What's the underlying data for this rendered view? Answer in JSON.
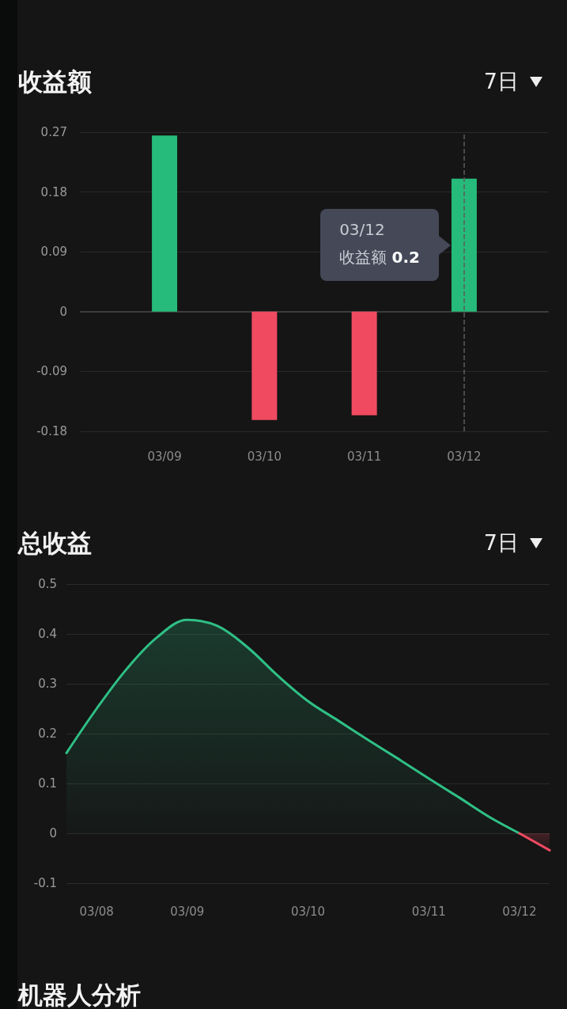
{
  "chart_data": [
    {
      "type": "bar",
      "title": "收益额",
      "categories": [
        "03/09",
        "03/10",
        "03/11",
        "03/12"
      ],
      "values": [
        0.265,
        -0.163,
        -0.156,
        0.2
      ],
      "colors": [
        "#26bb7a",
        "#f04a61",
        "#f04a61",
        "#26bb7a"
      ],
      "ylim": [
        -0.18,
        0.27
      ],
      "yticks": [
        -0.18,
        -0.09,
        0,
        0.09,
        0.18,
        0.27
      ],
      "grid": "y",
      "ref_lines": [
        {
          "axis": "x",
          "value": "03/12",
          "line_style": "dashed",
          "color": "#5c5c5c"
        }
      ],
      "annotations": [
        "7日",
        {
          "text": "03/12\n收益额 0.2",
          "x": "03/12"
        }
      ]
    },
    {
      "type": "area",
      "title": "总收益",
      "categories": [
        null,
        "03/08",
        null,
        null,
        "03/09",
        null,
        null,
        null,
        "03/10",
        null,
        null,
        null,
        "03/11",
        null,
        null,
        "03/12",
        null
      ],
      "series": [
        {
          "color": "#2fc086",
          "values": [
            0.161,
            0.25,
            0.33,
            0.393,
            0.428,
            0.416,
            0.373,
            0.316,
            0.265,
            0.226,
            0.187,
            0.149,
            0.11,
            0.072,
            0.033,
            0,
            null
          ]
        },
        {
          "color": "#ef4a62",
          "values": [
            null,
            null,
            null,
            null,
            null,
            null,
            null,
            null,
            null,
            null,
            null,
            null,
            null,
            null,
            null,
            0,
            -0.034
          ]
        }
      ],
      "ylim": [
        -0.1,
        0.5
      ],
      "yticks": [
        -0.1,
        0,
        0.1,
        0.2,
        0.3,
        0.4,
        0.5
      ],
      "grid": "y",
      "annotations": [
        "7日"
      ]
    },
    {
      "type": "other",
      "title": "机器人分析"
    }
  ]
}
